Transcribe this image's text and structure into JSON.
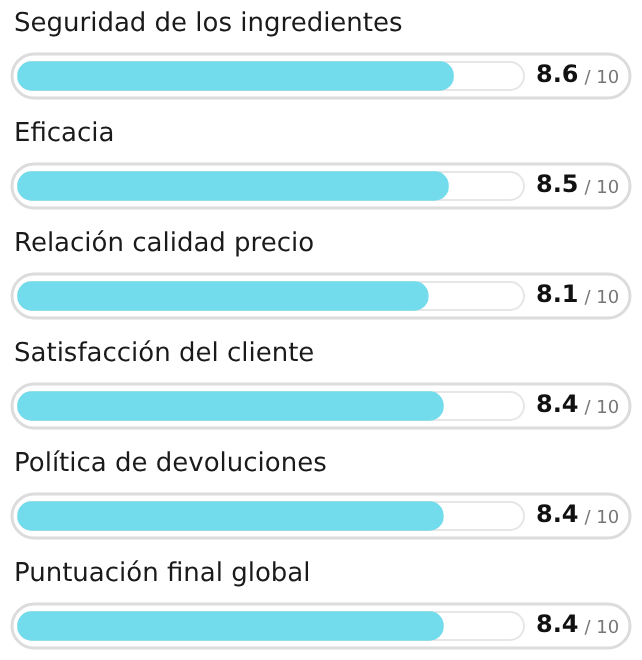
{
  "chart_data": {
    "type": "bar",
    "orientation": "horizontal",
    "categories": [
      "Seguridad de los ingredientes",
      "Eficacia",
      "Relación calidad precio",
      "Satisfacción del cliente",
      "Política de devoluciones",
      "Puntuación final global"
    ],
    "values": [
      8.6,
      8.5,
      8.1,
      8.4,
      8.4,
      8.4
    ],
    "data_labels": true,
    "annotations": [
      "/ 10",
      "/ 10",
      "/ 10",
      "/ 10",
      "/ 10",
      "/ 10"
    ],
    "color": "#73dcec",
    "xlim": [
      0,
      10
    ],
    "tick_labels": false,
    "legend": false
  }
}
